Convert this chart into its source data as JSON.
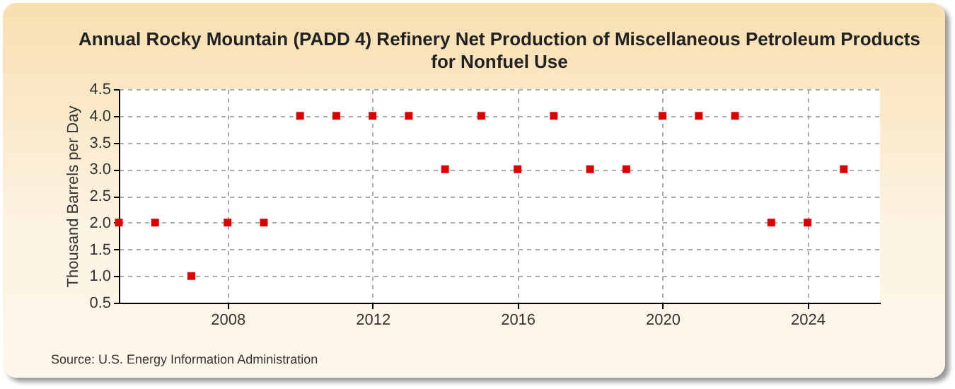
{
  "chart_data": {
    "type": "scatter",
    "title": "Annual Rocky Mountain (PADD 4) Refinery Net Production of Miscellaneous Petroleum Products for Nonfuel Use",
    "ylabel": "Thousand Barrels per Day",
    "annotations": [
      "Source: U.S. Energy Information Administration"
    ],
    "x": [
      2005,
      2006,
      2007,
      2008,
      2009,
      2010,
      2011,
      2012,
      2013,
      2014,
      2015,
      2016,
      2017,
      2018,
      2019,
      2020,
      2021,
      2022,
      2023,
      2024,
      2025
    ],
    "series": [
      {
        "color": "#dd0000",
        "values": [
          2,
          2,
          1,
          2,
          2,
          4,
          4,
          4,
          4,
          3,
          4,
          3,
          4,
          3,
          3,
          4,
          4,
          4,
          2,
          2,
          3
        ]
      }
    ],
    "xlim": [
      2005,
      2026
    ],
    "xticks": [
      2008,
      2012,
      2016,
      2020,
      2024
    ],
    "ylim": [
      0.5,
      4.5
    ],
    "yticks": [
      0.5,
      {
        "value": 1,
        "label": "1.0"
      },
      1.5,
      {
        "value": 2,
        "label": "2.0"
      },
      2.5,
      {
        "value": 3,
        "label": "3.0"
      },
      3.5,
      {
        "value": 4,
        "label": "4.0"
      },
      4.5
    ],
    "grid": true,
    "marker": "square",
    "legend": false
  }
}
